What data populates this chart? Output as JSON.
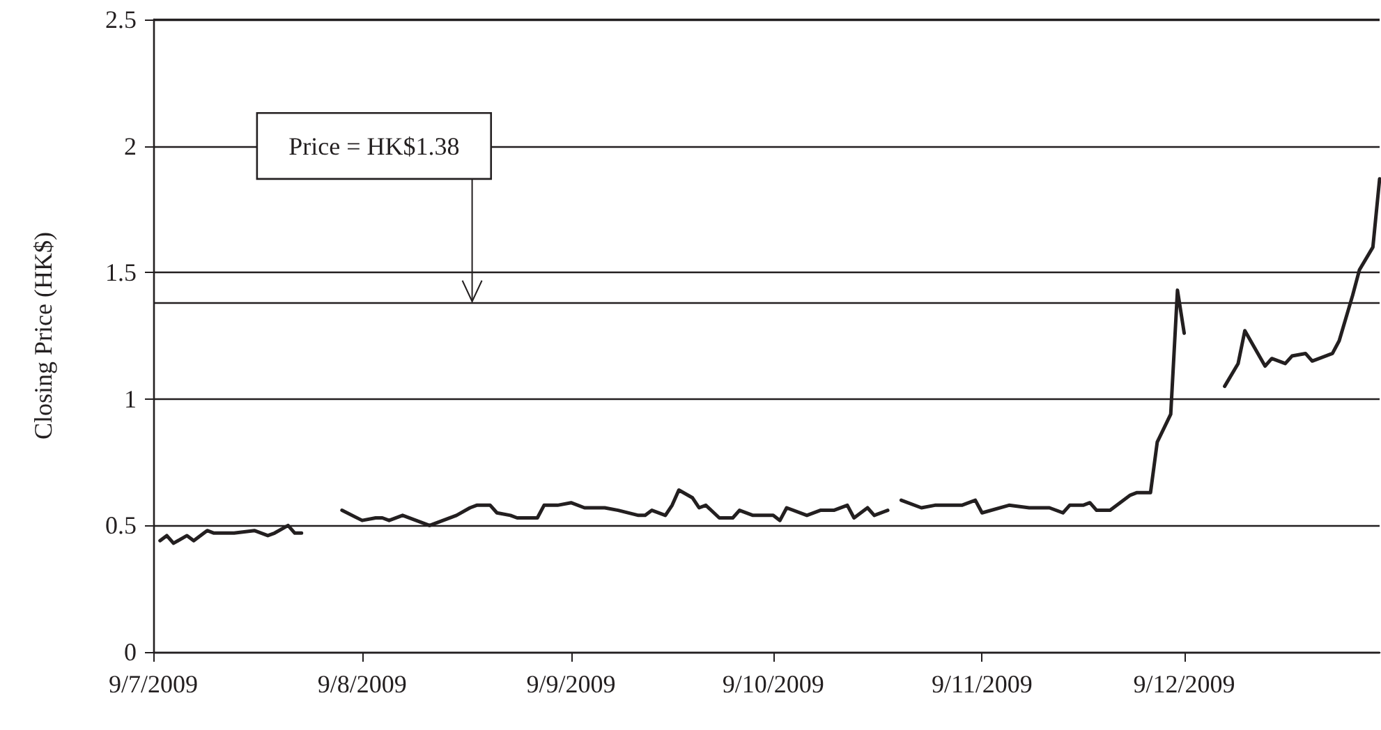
{
  "chart_data": {
    "type": "line",
    "ylabel": "Closing Price (HK$)",
    "x": [
      "2009-07-10",
      "2009-07-11",
      "2009-07-12",
      "2009-07-14",
      "2009-07-15",
      "2009-07-17",
      "2009-07-18",
      "2009-07-21",
      "2009-07-24",
      "2009-07-26",
      "2009-07-27",
      "2009-07-29",
      "2009-07-30",
      "2009-07-31",
      "2009-08-03",
      "2009-08-06",
      "2009-08-09",
      "2009-08-11",
      "2009-08-12",
      "2009-08-13",
      "2009-08-15",
      "2009-08-17",
      "2009-08-19",
      "2009-08-21",
      "2009-08-23",
      "2009-08-25",
      "2009-08-26",
      "2009-08-28",
      "2009-08-29",
      "2009-08-31",
      "2009-09-01",
      "2009-09-04",
      "2009-09-05",
      "2009-09-07",
      "2009-09-09",
      "2009-09-11",
      "2009-09-14",
      "2009-09-16",
      "2009-09-19",
      "2009-09-20",
      "2009-09-21",
      "2009-09-23",
      "2009-09-24",
      "2009-09-25",
      "2009-09-27",
      "2009-09-28",
      "2009-09-29",
      "2009-10-01",
      "2009-10-03",
      "2009-10-04",
      "2009-10-06",
      "2009-10-09",
      "2009-10-10",
      "2009-10-11",
      "2009-10-14",
      "2009-10-16",
      "2009-10-18",
      "2009-10-20",
      "2009-10-21",
      "2009-10-23",
      "2009-10-24",
      "2009-10-26",
      "2009-10-27",
      "2009-10-28",
      "2009-10-31",
      "2009-11-02",
      "2009-11-05",
      "2009-11-06",
      "2009-11-08",
      "2009-11-09",
      "2009-11-13",
      "2009-11-16",
      "2009-11-19",
      "2009-11-21",
      "2009-11-22",
      "2009-11-24",
      "2009-11-25",
      "2009-11-26",
      "2009-11-28",
      "2009-11-29",
      "2009-12-01",
      "2009-12-02",
      "2009-12-04",
      "2009-12-05",
      "2009-12-07",
      "2009-12-08",
      "2009-12-09",
      "2009-12-12",
      "2009-12-15",
      "2009-12-17",
      "2009-12-18",
      "2009-12-21",
      "2009-12-22",
      "2009-12-24",
      "2009-12-25",
      "2009-12-27",
      "2009-12-28",
      "2009-12-31",
      "2010-01-01",
      "2010-01-03",
      "2010-01-04",
      "2010-01-06",
      "2010-01-07"
    ],
    "series": [
      {
        "color": "#231f20",
        "values": [
          0.44,
          0.46,
          0.43,
          0.46,
          0.44,
          0.48,
          0.47,
          0.47,
          0.48,
          0.46,
          0.47,
          0.5,
          0.47,
          0.47,
          null,
          0.56,
          0.52,
          0.53,
          0.53,
          0.52,
          0.54,
          0.52,
          0.5,
          0.52,
          0.54,
          0.57,
          0.58,
          0.58,
          0.55,
          0.54,
          0.53,
          0.53,
          0.58,
          0.58,
          0.59,
          0.57,
          0.57,
          0.56,
          0.54,
          0.54,
          0.56,
          0.54,
          0.58,
          0.64,
          0.61,
          0.57,
          0.58,
          0.53,
          0.53,
          0.56,
          0.54,
          0.54,
          0.52,
          0.57,
          0.54,
          0.56,
          0.56,
          0.58,
          0.53,
          0.57,
          0.54,
          0.56,
          null,
          0.6,
          0.57,
          0.58,
          0.58,
          0.58,
          0.6,
          0.55,
          0.58,
          0.57,
          0.57,
          0.55,
          0.58,
          0.58,
          0.59,
          0.56,
          0.56,
          0.58,
          0.62,
          0.63,
          0.63,
          0.83,
          0.94,
          1.43,
          1.26,
          null,
          1.05,
          1.14,
          1.27,
          1.13,
          1.16,
          1.14,
          1.17,
          1.18,
          1.15,
          1.18,
          1.23,
          1.41,
          1.51,
          1.6,
          1.87
        ]
      }
    ],
    "xlim": [
      "2009-07-09",
      "2010-01-07"
    ],
    "xticks": [
      {
        "value": "2009-07-09",
        "label": "9/7/2009"
      },
      {
        "value": "2009-08-09",
        "label": "9/8/2009"
      },
      {
        "value": "2009-09-09",
        "label": "9/9/2009"
      },
      {
        "value": "2009-10-09",
        "label": "9/10/2009"
      },
      {
        "value": "2009-11-09",
        "label": "9/11/2009"
      },
      {
        "value": "2009-12-09",
        "label": "9/12/2009"
      }
    ],
    "ylim": [
      0,
      2.5
    ],
    "yticks": [
      0,
      0.5,
      1,
      1.5,
      2,
      2.5
    ],
    "grid": "y",
    "marker": "none",
    "line_style": "solid",
    "ref_lines": [
      {
        "axis": "y",
        "value": 1.38,
        "label": "Price = HK$1.38",
        "color": "#231f20"
      }
    ]
  }
}
